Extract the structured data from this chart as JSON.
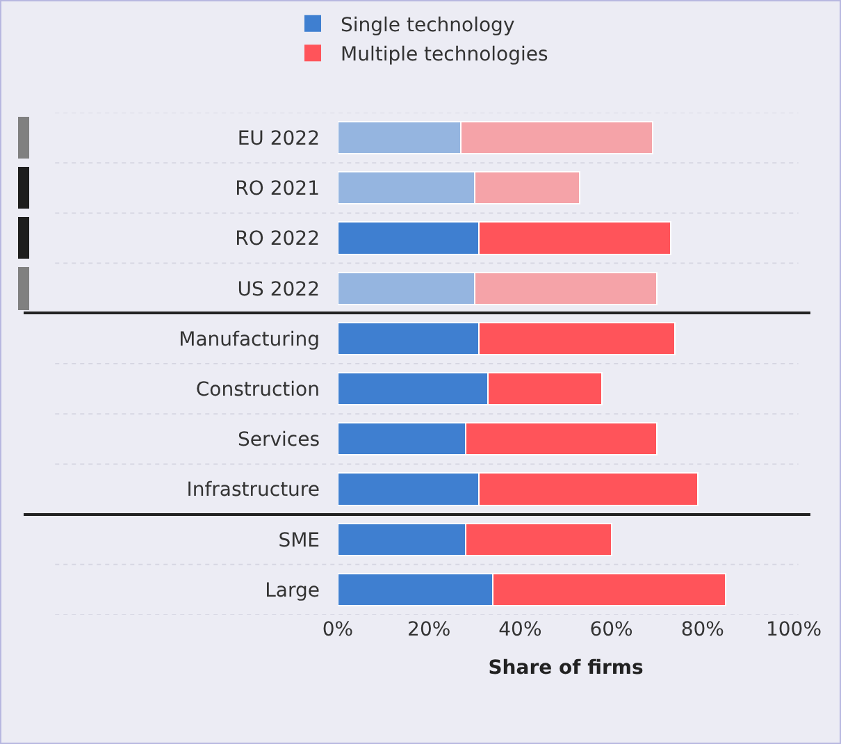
{
  "chart_data": {
    "type": "bar",
    "orientation": "horizontal",
    "stacked": true,
    "xlabel": "Share of firms",
    "categories": [
      "EU 2022",
      "RO 2021",
      "RO 2022",
      "US 2022",
      "Manufacturing",
      "Construction",
      "Services",
      "Infrastructure",
      "SME",
      "Large"
    ],
    "series": [
      {
        "name": "Single technology",
        "color": "#3f7fd0",
        "colors": [
          "#95b5e0",
          "#95b5e0",
          "#3f7fd0",
          "#95b5e0",
          "#3f7fd0",
          "#3f7fd0",
          "#3f7fd0",
          "#3f7fd0",
          "#3f7fd0",
          "#3f7fd0"
        ],
        "values": [
          27,
          30,
          31,
          30,
          31,
          33,
          28,
          31,
          28,
          34
        ]
      },
      {
        "name": "Multiple technologies",
        "color": "#ff545a",
        "colors": [
          "#f5a3a8",
          "#f5a3a8",
          "#ff545a",
          "#f5a3a8",
          "#ff545a",
          "#ff545a",
          "#ff545a",
          "#ff545a",
          "#ff545a",
          "#ff545a"
        ],
        "values": [
          42,
          23,
          42,
          40,
          43,
          25,
          42,
          48,
          32,
          51
        ]
      }
    ],
    "xlim": [
      0,
      100
    ],
    "xticks": [
      {
        "value": 0,
        "label": "0%"
      },
      {
        "value": 20,
        "label": "20%"
      },
      {
        "value": 40,
        "label": "40%"
      },
      {
        "value": 60,
        "label": "60%"
      },
      {
        "value": 80,
        "label": "80%"
      },
      {
        "value": 100,
        "label": "100%"
      }
    ],
    "grid": "y",
    "legend": "top"
  }
}
